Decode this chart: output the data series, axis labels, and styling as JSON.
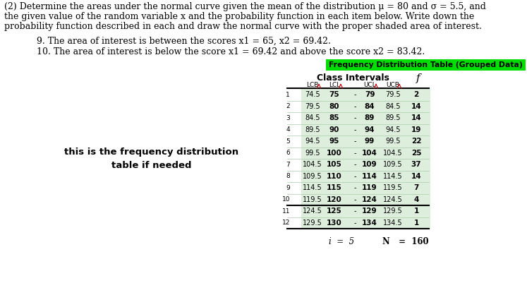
{
  "title_line1": "(2) Determine the areas under the normal curve given the mean of the distribution μ = 80 and σ = 5.5, and",
  "title_line2": "the given value of the random variable x and the probability function in each item below. Write down the",
  "title_line3": "probability function described in each and draw the normal curve with the proper shaded area of interest.",
  "item9": "9. The area of interest is between the scores x1 = 65, x2 = 69.42.",
  "item10": "10. The area of interest is below the score x1 = 69.42 and above the score x2 = 83.42.",
  "table_title": "Frequency Distribution Table (Grouped Data)",
  "table_title_bg": "#00dd00",
  "table_title_color": "#000000",
  "rows": [
    [
      1,
      "74.5",
      "75",
      "-",
      "79",
      "79.5",
      "2"
    ],
    [
      2,
      "79.5",
      "80",
      "-",
      "84",
      "84.5",
      "14"
    ],
    [
      3,
      "84.5",
      "85",
      "-",
      "89",
      "89.5",
      "14"
    ],
    [
      4,
      "89.5",
      "90",
      "-",
      "94",
      "94.5",
      "19"
    ],
    [
      5,
      "94.5",
      "95",
      "-",
      "99",
      "99.5",
      "22"
    ],
    [
      6,
      "99.5",
      "100",
      "-",
      "104",
      "104.5",
      "25"
    ],
    [
      7,
      "104.5",
      "105",
      "-",
      "109",
      "109.5",
      "37"
    ],
    [
      8,
      "109.5",
      "110",
      "-",
      "114",
      "114.5",
      "14"
    ],
    [
      9,
      "114.5",
      "115",
      "-",
      "119",
      "119.5",
      "7"
    ],
    [
      10,
      "119.5",
      "120",
      "-",
      "124",
      "124.5",
      "4"
    ],
    [
      11,
      "124.5",
      "125",
      "-",
      "129",
      "129.5",
      "1"
    ],
    [
      12,
      "129.5",
      "130",
      "-",
      "134",
      "134.5",
      "1"
    ]
  ],
  "footer_i": "i  =  5",
  "footer_N": "N   =  160",
  "left_note": "this is the frequency distribution\ntable if needed",
  "bg_color": "#ffffff",
  "text_color": "#000000",
  "row_alt_color": "#ddeedd",
  "row_white_color": "#ffffff",
  "arrow_color": "#cc0000",
  "thick_border_after": 10
}
